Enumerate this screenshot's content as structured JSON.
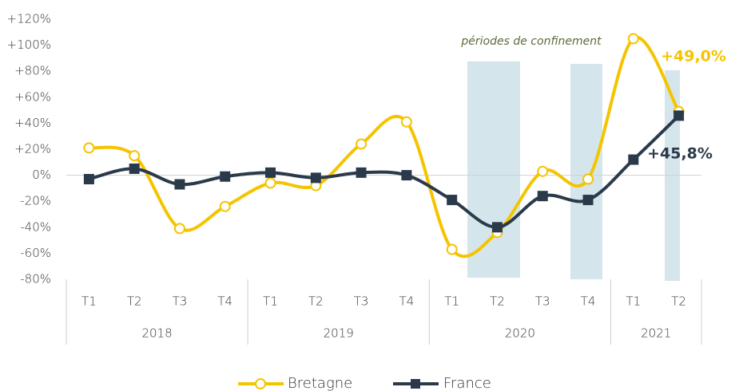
{
  "chart_data": {
    "type": "line",
    "categories": [
      "T1",
      "T2",
      "T3",
      "T4",
      "T1",
      "T2",
      "T3",
      "T4",
      "T1",
      "T2",
      "T3",
      "T4",
      "T1",
      "T2"
    ],
    "groups": [
      {
        "label": "2018",
        "size": 4
      },
      {
        "label": "2019",
        "size": 4
      },
      {
        "label": "2020",
        "size": 4
      },
      {
        "label": "2021",
        "size": 2
      }
    ],
    "annotation": "périodes de confinement",
    "series": [
      {
        "name": "Bretagne",
        "color": "#f5c400",
        "marker": "circle",
        "values": [
          21,
          15,
          -41,
          -24,
          -6,
          -8,
          24,
          41,
          -57,
          -44,
          3,
          -3,
          105,
          49.0
        ],
        "end_label": "+49,0%"
      },
      {
        "name": "France",
        "color": "#2b3a4a",
        "marker": "square",
        "values": [
          -3,
          5,
          -7,
          -1,
          2,
          -2,
          2,
          0,
          -19,
          -40,
          -16,
          -19,
          12,
          45.8
        ],
        "end_label": "+45,8%"
      }
    ],
    "ylim": [
      -80,
      120
    ],
    "yticks": [
      {
        "value": -80,
        "label": "-80%"
      },
      {
        "value": -60,
        "label": "-60%"
      },
      {
        "value": -40,
        "label": "-40%"
      },
      {
        "value": -20,
        "label": "-20%"
      },
      {
        "value": 0,
        "label": "0%"
      },
      {
        "value": 20,
        "label": "+20%"
      },
      {
        "value": 40,
        "label": "+40%"
      },
      {
        "value": 60,
        "label": "+60%"
      },
      {
        "value": 80,
        "label": "+80%"
      },
      {
        "value": 100,
        "label": "+100%"
      },
      {
        "value": 120,
        "label": "+120%"
      }
    ],
    "grid": false,
    "legend": "bottom"
  }
}
